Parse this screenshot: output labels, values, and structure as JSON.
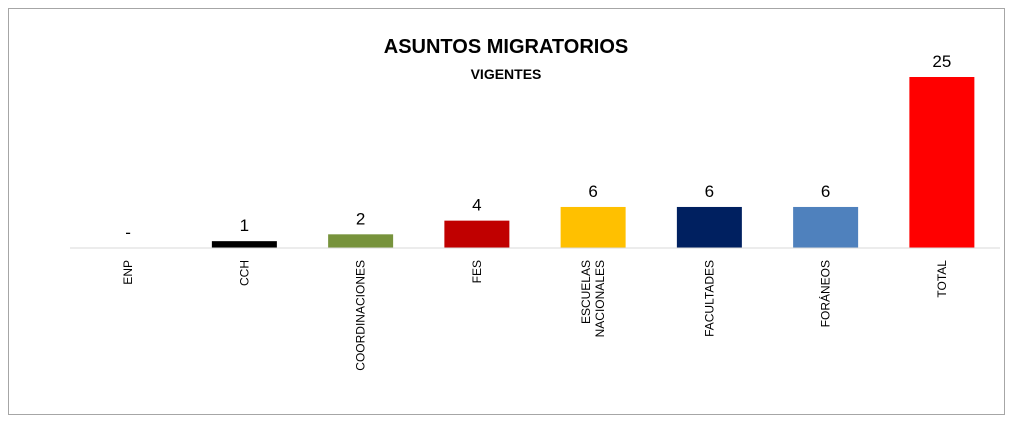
{
  "chart_data": {
    "type": "bar",
    "title": "ASUNTOS MIGRATORIOS",
    "subtitle": "VIGENTES",
    "categories": [
      "ENP",
      "CCH",
      "COORDINACIONES",
      "FES",
      "ESCUELAS NACIONALES",
      "FACULTADES",
      "FORÁNEOS",
      "TOTAL"
    ],
    "values": [
      0,
      1,
      2,
      4,
      6,
      6,
      6,
      25
    ],
    "value_labels": [
      "-",
      "1",
      "2",
      "4",
      "6",
      "6",
      "6",
      "25"
    ],
    "colors": [
      "#7f7f7f",
      "#000000",
      "#77933c",
      "#c00000",
      "#ffc000",
      "#002060",
      "#4f81bd",
      "#ff0000"
    ],
    "ylim": [
      0,
      25
    ]
  }
}
